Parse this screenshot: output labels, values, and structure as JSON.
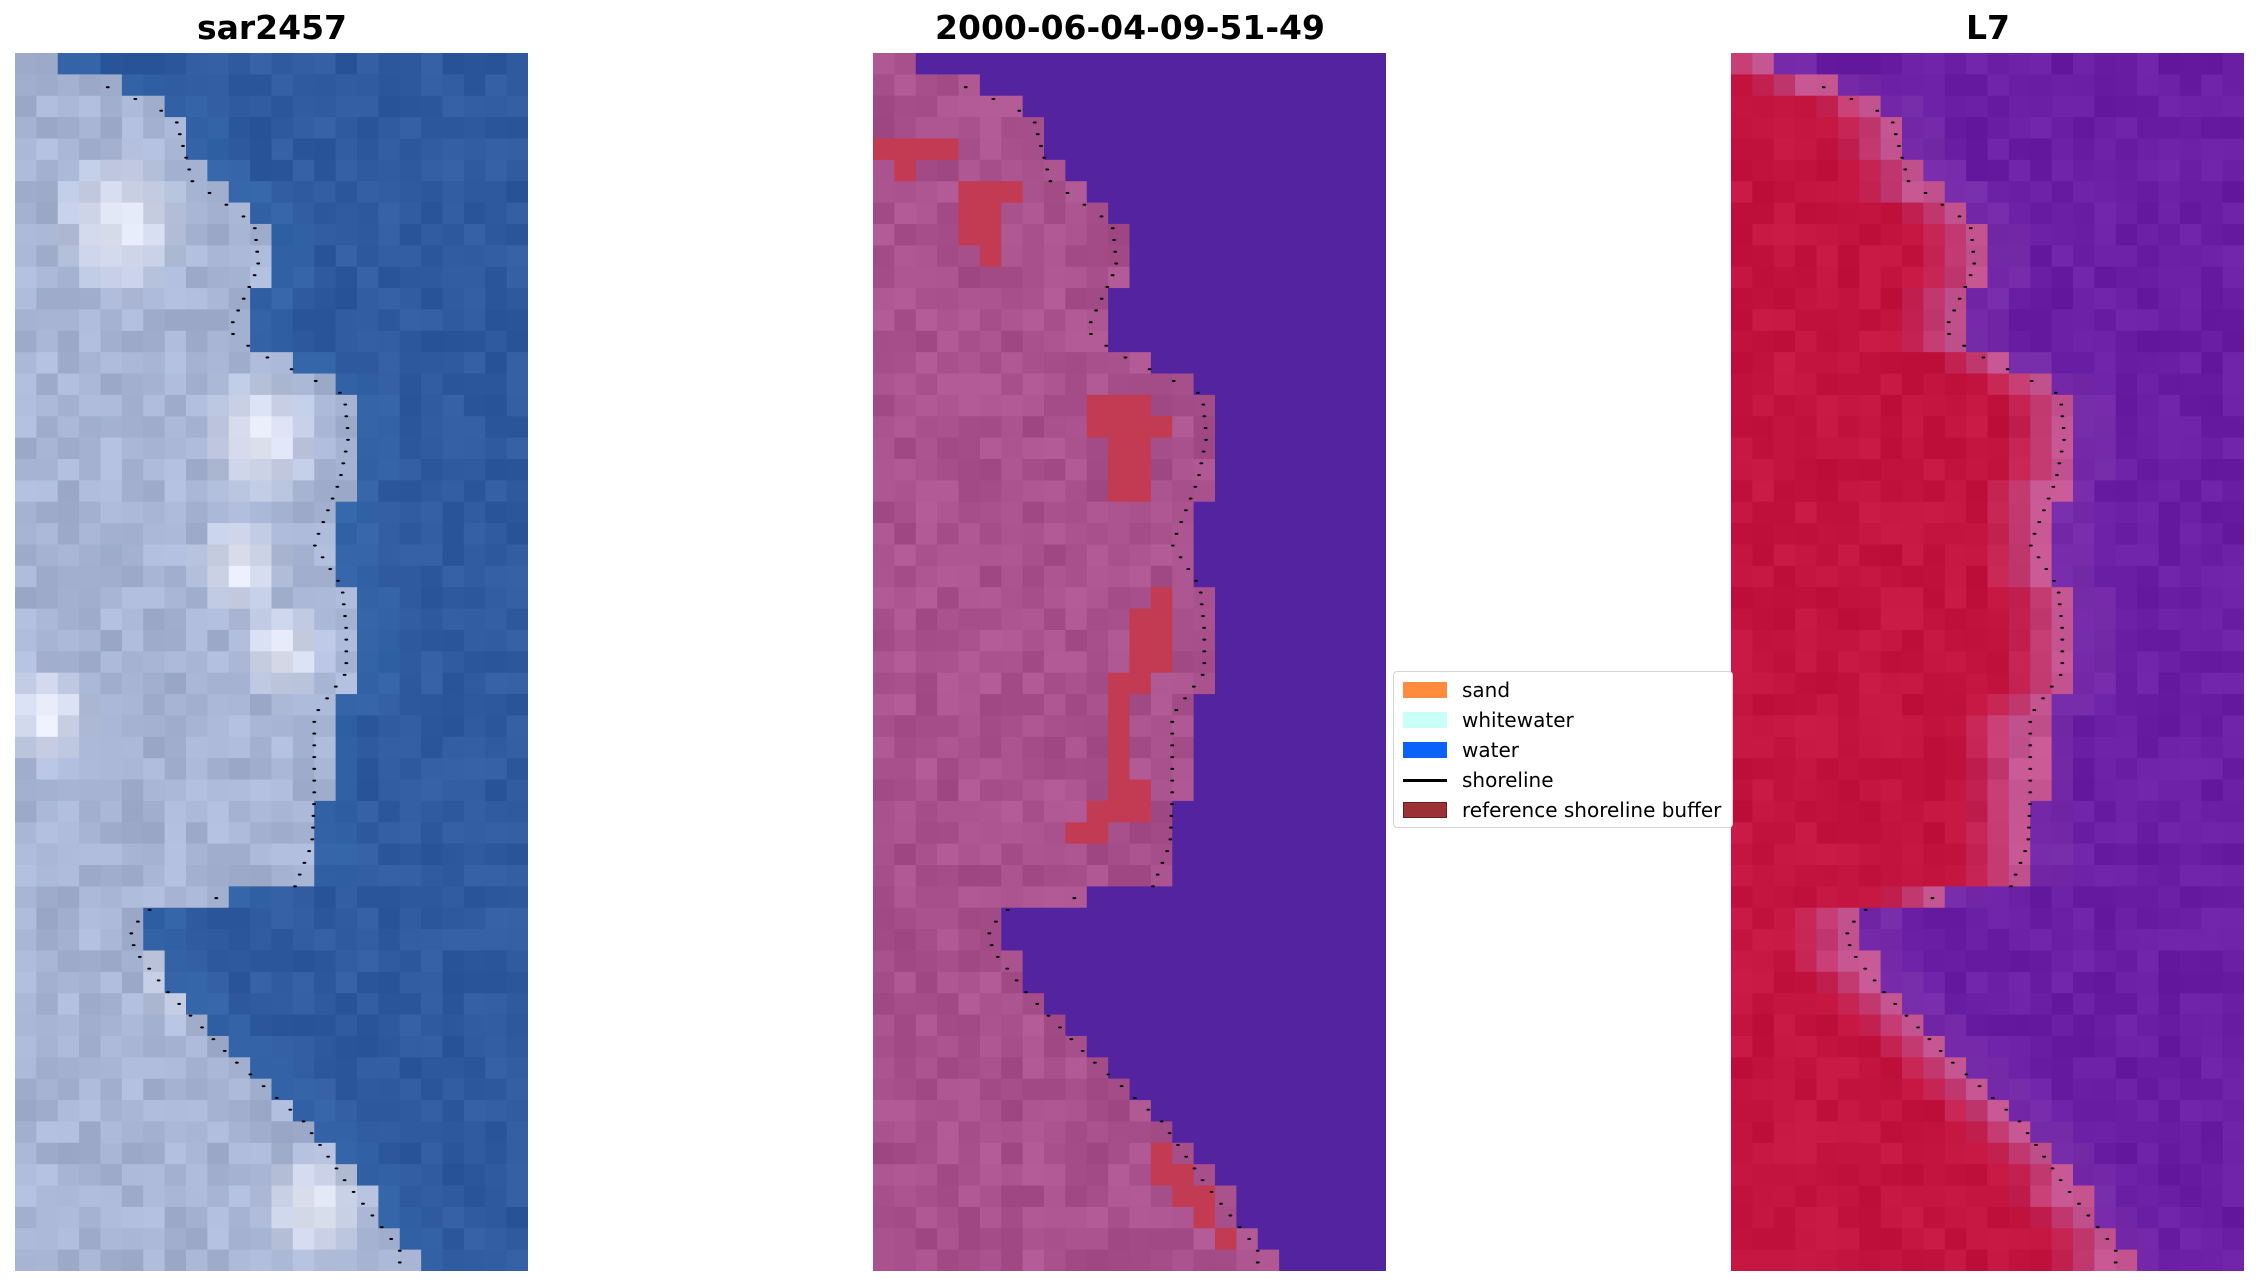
{
  "panels": [
    {
      "title": "sar2457",
      "kind": "rgb"
    },
    {
      "title": "2000-06-04-09-51-49",
      "kind": "classified"
    },
    {
      "title": "L7",
      "kind": "index"
    }
  ],
  "legend": {
    "items": [
      {
        "label": "sand",
        "type": "patch",
        "color": "#ff8c3c"
      },
      {
        "label": "whitewater",
        "type": "patch",
        "color": "#c8fff9"
      },
      {
        "label": "water",
        "type": "patch",
        "color": "#0a62fa"
      },
      {
        "label": "shoreline",
        "type": "line",
        "color": "#000000"
      },
      {
        "label": "reference shoreline buffer",
        "type": "patch",
        "color": "#9b3135",
        "edge": "#6e1b1e"
      }
    ]
  },
  "colors": {
    "ocean_rgb": "#2f5aa0",
    "land_rgb": "#a7b4d4",
    "bright_rgb": "#eef0fa",
    "ocean_classified": "#5424a0",
    "land_classified": "#a8518c",
    "buffer_classified": "#c23b52",
    "ocean_index": "#6a1ea4",
    "land_index": "#c3133f",
    "edge_index": "#c55c9a",
    "shoreline": "#000000"
  }
}
